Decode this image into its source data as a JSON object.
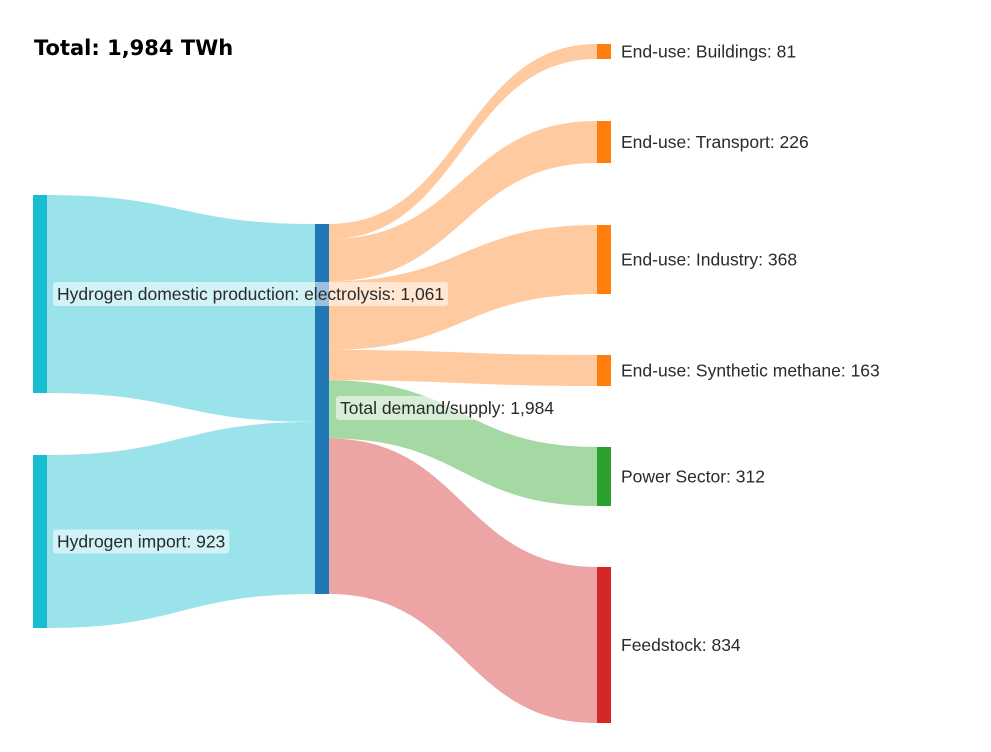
{
  "chart_data": {
    "type": "sankey",
    "title": "Total: 1,984 TWh",
    "nodes": [
      {
        "id": "electrolysis",
        "label": "Hydrogen domestic production: electrolysis: 1,061",
        "value": 1061,
        "color": "#17becf"
      },
      {
        "id": "import",
        "label": "Hydrogen import: 923",
        "value": 923,
        "color": "#17becf"
      },
      {
        "id": "total",
        "label": "Total demand/supply: 1,984",
        "value": 1984,
        "color": "#1f77b4"
      },
      {
        "id": "buildings",
        "label": "End-use: Buildings: 81",
        "value": 81,
        "color": "#ff7f0e"
      },
      {
        "id": "transport",
        "label": "End-use: Transport: 226",
        "value": 226,
        "color": "#ff7f0e"
      },
      {
        "id": "industry",
        "label": "End-use: Industry: 368",
        "value": 368,
        "color": "#ff7f0e"
      },
      {
        "id": "methane",
        "label": "End-use: Synthetic methane: 163",
        "value": 163,
        "color": "#ff7f0e"
      },
      {
        "id": "power",
        "label": "Power Sector: 312",
        "value": 312,
        "color": "#2ca02c"
      },
      {
        "id": "feedstock",
        "label": "Feedstock: 834",
        "value": 834,
        "color": "#d62728"
      }
    ],
    "links": [
      {
        "source": "electrolysis",
        "target": "total",
        "value": 1061,
        "color": "#95e1ea"
      },
      {
        "source": "import",
        "target": "total",
        "value": 923,
        "color": "#95e1ea"
      },
      {
        "source": "total",
        "target": "buildings",
        "value": 81,
        "color": "#ffc79b"
      },
      {
        "source": "total",
        "target": "transport",
        "value": 226,
        "color": "#ffc79b"
      },
      {
        "source": "total",
        "target": "industry",
        "value": 368,
        "color": "#ffc79b"
      },
      {
        "source": "total",
        "target": "methane",
        "value": 163,
        "color": "#ffc79b"
      },
      {
        "source": "total",
        "target": "power",
        "value": 312,
        "color": "#a0d79f"
      },
      {
        "source": "total",
        "target": "feedstock",
        "value": 834,
        "color": "#ec9fa0"
      }
    ]
  }
}
